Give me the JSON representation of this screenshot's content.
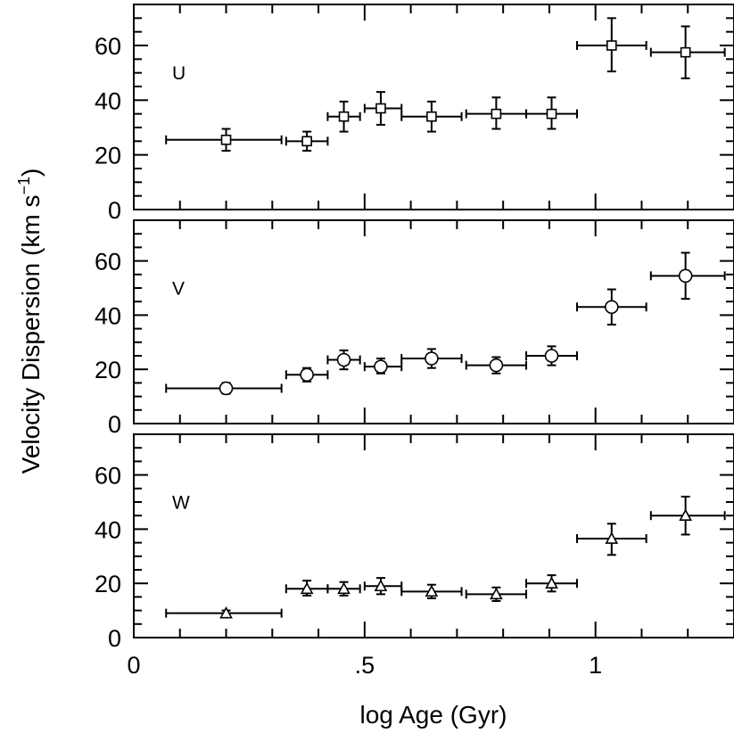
{
  "chart_data": {
    "type": "scatter",
    "xlabel": "log Age (Gyr)",
    "ylabel": "Velocity Dispersion (km s",
    "ylabel_sup": "−1",
    "ylabel_close": ")",
    "xlim": [
      0,
      1.3
    ],
    "ylim": [
      0,
      75
    ],
    "x_ticks": [
      {
        "value": 0,
        "label": "0"
      },
      {
        "value": 0.5,
        "label": ".5"
      },
      {
        "value": 1,
        "label": "1"
      }
    ],
    "y_ticks": [
      {
        "value": 0,
        "label": "0"
      },
      {
        "value": 20,
        "label": "20"
      },
      {
        "value": 40,
        "label": "40"
      },
      {
        "value": 60,
        "label": "60"
      }
    ],
    "grid": false,
    "legend": "none",
    "panels": [
      {
        "label": "U",
        "marker": "square",
        "points": [
          {
            "x": 0.2,
            "xlo": 0.07,
            "xhi": 0.32,
            "y": 25.5,
            "ylo": 21.5,
            "yhi": 29.5
          },
          {
            "x": 0.375,
            "xlo": 0.33,
            "xhi": 0.42,
            "y": 25,
            "ylo": 21.5,
            "yhi": 28.5
          },
          {
            "x": 0.455,
            "xlo": 0.42,
            "xhi": 0.49,
            "y": 34,
            "ylo": 28.5,
            "yhi": 39.5
          },
          {
            "x": 0.535,
            "xlo": 0.5,
            "xhi": 0.58,
            "y": 37,
            "ylo": 31,
            "yhi": 43
          },
          {
            "x": 0.645,
            "xlo": 0.58,
            "xhi": 0.71,
            "y": 34,
            "ylo": 28.5,
            "yhi": 39.5
          },
          {
            "x": 0.785,
            "xlo": 0.72,
            "xhi": 0.85,
            "y": 35,
            "ylo": 29.5,
            "yhi": 41
          },
          {
            "x": 0.905,
            "xlo": 0.85,
            "xhi": 0.96,
            "y": 35,
            "ylo": 29.5,
            "yhi": 41
          },
          {
            "x": 1.035,
            "xlo": 0.96,
            "xhi": 1.11,
            "y": 60,
            "ylo": 50.5,
            "yhi": 70
          },
          {
            "x": 1.195,
            "xlo": 1.12,
            "xhi": 1.28,
            "y": 57.5,
            "ylo": 48,
            "yhi": 67
          }
        ]
      },
      {
        "label": "V",
        "marker": "circle",
        "points": [
          {
            "x": 0.2,
            "xlo": 0.07,
            "xhi": 0.32,
            "y": 13,
            "ylo": 11,
            "yhi": 15
          },
          {
            "x": 0.375,
            "xlo": 0.33,
            "xhi": 0.42,
            "y": 18,
            "ylo": 15.5,
            "yhi": 20.5
          },
          {
            "x": 0.455,
            "xlo": 0.42,
            "xhi": 0.49,
            "y": 23.5,
            "ylo": 20,
            "yhi": 27
          },
          {
            "x": 0.535,
            "xlo": 0.5,
            "xhi": 0.58,
            "y": 21,
            "ylo": 18.5,
            "yhi": 24
          },
          {
            "x": 0.645,
            "xlo": 0.58,
            "xhi": 0.71,
            "y": 24,
            "ylo": 20.5,
            "yhi": 27.5
          },
          {
            "x": 0.785,
            "xlo": 0.72,
            "xhi": 0.85,
            "y": 21.5,
            "ylo": 18.5,
            "yhi": 24.5
          },
          {
            "x": 0.905,
            "xlo": 0.85,
            "xhi": 0.96,
            "y": 25,
            "ylo": 21.5,
            "yhi": 28.5
          },
          {
            "x": 1.035,
            "xlo": 0.96,
            "xhi": 1.11,
            "y": 43,
            "ylo": 36.5,
            "yhi": 49.5
          },
          {
            "x": 1.195,
            "xlo": 1.12,
            "xhi": 1.28,
            "y": 54.5,
            "ylo": 46,
            "yhi": 63
          }
        ]
      },
      {
        "label": "W",
        "marker": "triangle",
        "points": [
          {
            "x": 0.2,
            "xlo": 0.07,
            "xhi": 0.32,
            "y": 9,
            "ylo": 8,
            "yhi": 10
          },
          {
            "x": 0.375,
            "xlo": 0.33,
            "xhi": 0.42,
            "y": 18,
            "ylo": 15.5,
            "yhi": 21
          },
          {
            "x": 0.455,
            "xlo": 0.42,
            "xhi": 0.49,
            "y": 18,
            "ylo": 15.5,
            "yhi": 20.5
          },
          {
            "x": 0.535,
            "xlo": 0.5,
            "xhi": 0.58,
            "y": 19,
            "ylo": 16,
            "yhi": 22
          },
          {
            "x": 0.645,
            "xlo": 0.58,
            "xhi": 0.71,
            "y": 17,
            "ylo": 14.5,
            "yhi": 19.5
          },
          {
            "x": 0.785,
            "xlo": 0.72,
            "xhi": 0.85,
            "y": 16,
            "ylo": 13.5,
            "yhi": 18.5
          },
          {
            "x": 0.905,
            "xlo": 0.85,
            "xhi": 0.96,
            "y": 20,
            "ylo": 17,
            "yhi": 23
          },
          {
            "x": 1.035,
            "xlo": 0.96,
            "xhi": 1.11,
            "y": 36.5,
            "ylo": 30.5,
            "yhi": 42
          },
          {
            "x": 1.195,
            "xlo": 1.12,
            "xhi": 1.28,
            "y": 45,
            "ylo": 38,
            "yhi": 52
          }
        ]
      }
    ]
  }
}
